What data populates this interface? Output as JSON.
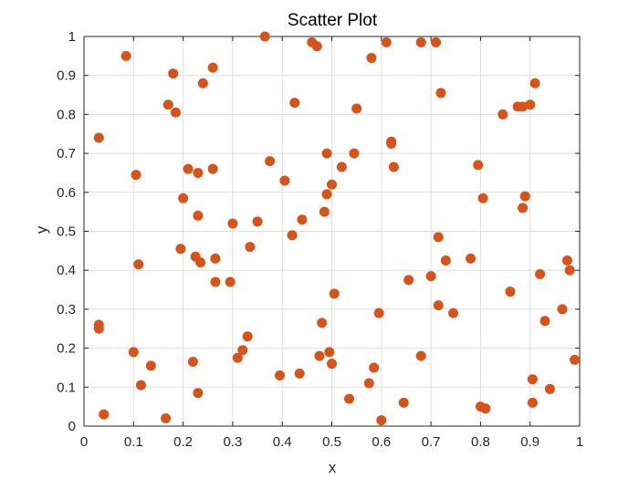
{
  "chart_data": {
    "type": "scatter",
    "title": "Scatter Plot",
    "xlabel": "x",
    "ylabel": "y",
    "xlim": [
      0,
      1
    ],
    "ylim": [
      0,
      1
    ],
    "grid": true,
    "xticks": [
      "0",
      "0.1",
      "0.2",
      "0.3",
      "0.4",
      "0.5",
      "0.6",
      "0.7",
      "0.8",
      "0.9",
      "1"
    ],
    "yticks": [
      "0",
      "0.1",
      "0.2",
      "0.3",
      "0.4",
      "0.5",
      "0.6",
      "0.7",
      "0.8",
      "0.9",
      "1"
    ],
    "marker_color": "#d95319",
    "series": [
      {
        "points": [
          [
            0.03,
            0.74
          ],
          [
            0.03,
            0.26
          ],
          [
            0.03,
            0.25
          ],
          [
            0.04,
            0.03
          ],
          [
            0.085,
            0.95
          ],
          [
            0.1,
            0.19
          ],
          [
            0.105,
            0.645
          ],
          [
            0.11,
            0.415
          ],
          [
            0.115,
            0.105
          ],
          [
            0.135,
            0.155
          ],
          [
            0.165,
            0.02
          ],
          [
            0.17,
            0.825
          ],
          [
            0.18,
            0.905
          ],
          [
            0.185,
            0.805
          ],
          [
            0.195,
            0.455
          ],
          [
            0.2,
            0.585
          ],
          [
            0.21,
            0.66
          ],
          [
            0.22,
            0.165
          ],
          [
            0.225,
            0.435
          ],
          [
            0.23,
            0.65
          ],
          [
            0.23,
            0.085
          ],
          [
            0.23,
            0.54
          ],
          [
            0.235,
            0.42
          ],
          [
            0.24,
            0.88
          ],
          [
            0.26,
            0.66
          ],
          [
            0.26,
            0.92
          ],
          [
            0.265,
            0.43
          ],
          [
            0.265,
            0.37
          ],
          [
            0.295,
            0.37
          ],
          [
            0.3,
            0.52
          ],
          [
            0.31,
            0.175
          ],
          [
            0.32,
            0.195
          ],
          [
            0.33,
            0.23
          ],
          [
            0.335,
            0.46
          ],
          [
            0.35,
            0.525
          ],
          [
            0.365,
            1.0
          ],
          [
            0.375,
            0.68
          ],
          [
            0.395,
            0.13
          ],
          [
            0.405,
            0.63
          ],
          [
            0.42,
            0.49
          ],
          [
            0.425,
            0.83
          ],
          [
            0.435,
            0.135
          ],
          [
            0.44,
            0.53
          ],
          [
            0.46,
            0.985
          ],
          [
            0.47,
            0.975
          ],
          [
            0.475,
            0.18
          ],
          [
            0.48,
            0.265
          ],
          [
            0.485,
            0.55
          ],
          [
            0.49,
            0.7
          ],
          [
            0.49,
            0.595
          ],
          [
            0.495,
            0.19
          ],
          [
            0.5,
            0.16
          ],
          [
            0.5,
            0.62
          ],
          [
            0.505,
            0.34
          ],
          [
            0.52,
            0.665
          ],
          [
            0.535,
            0.07
          ],
          [
            0.545,
            0.7
          ],
          [
            0.55,
            0.815
          ],
          [
            0.575,
            0.11
          ],
          [
            0.58,
            0.945
          ],
          [
            0.585,
            0.15
          ],
          [
            0.595,
            0.29
          ],
          [
            0.6,
            0.015
          ],
          [
            0.61,
            0.985
          ],
          [
            0.62,
            0.73
          ],
          [
            0.62,
            0.725
          ],
          [
            0.625,
            0.665
          ],
          [
            0.645,
            0.06
          ],
          [
            0.655,
            0.375
          ],
          [
            0.68,
            0.18
          ],
          [
            0.68,
            0.985
          ],
          [
            0.7,
            0.385
          ],
          [
            0.71,
            0.985
          ],
          [
            0.715,
            0.31
          ],
          [
            0.715,
            0.485
          ],
          [
            0.72,
            0.855
          ],
          [
            0.73,
            0.425
          ],
          [
            0.745,
            0.29
          ],
          [
            0.78,
            0.43
          ],
          [
            0.795,
            0.67
          ],
          [
            0.8,
            0.05
          ],
          [
            0.805,
            0.585
          ],
          [
            0.81,
            0.045
          ],
          [
            0.845,
            0.8
          ],
          [
            0.86,
            0.345
          ],
          [
            0.875,
            0.82
          ],
          [
            0.885,
            0.56
          ],
          [
            0.885,
            0.82
          ],
          [
            0.89,
            0.59
          ],
          [
            0.9,
            0.825
          ],
          [
            0.905,
            0.12
          ],
          [
            0.905,
            0.06
          ],
          [
            0.91,
            0.88
          ],
          [
            0.92,
            0.39
          ],
          [
            0.93,
            0.27
          ],
          [
            0.94,
            0.095
          ],
          [
            0.965,
            0.3
          ],
          [
            0.975,
            0.425
          ],
          [
            0.98,
            0.4
          ],
          [
            0.99,
            0.17
          ]
        ]
      }
    ]
  }
}
